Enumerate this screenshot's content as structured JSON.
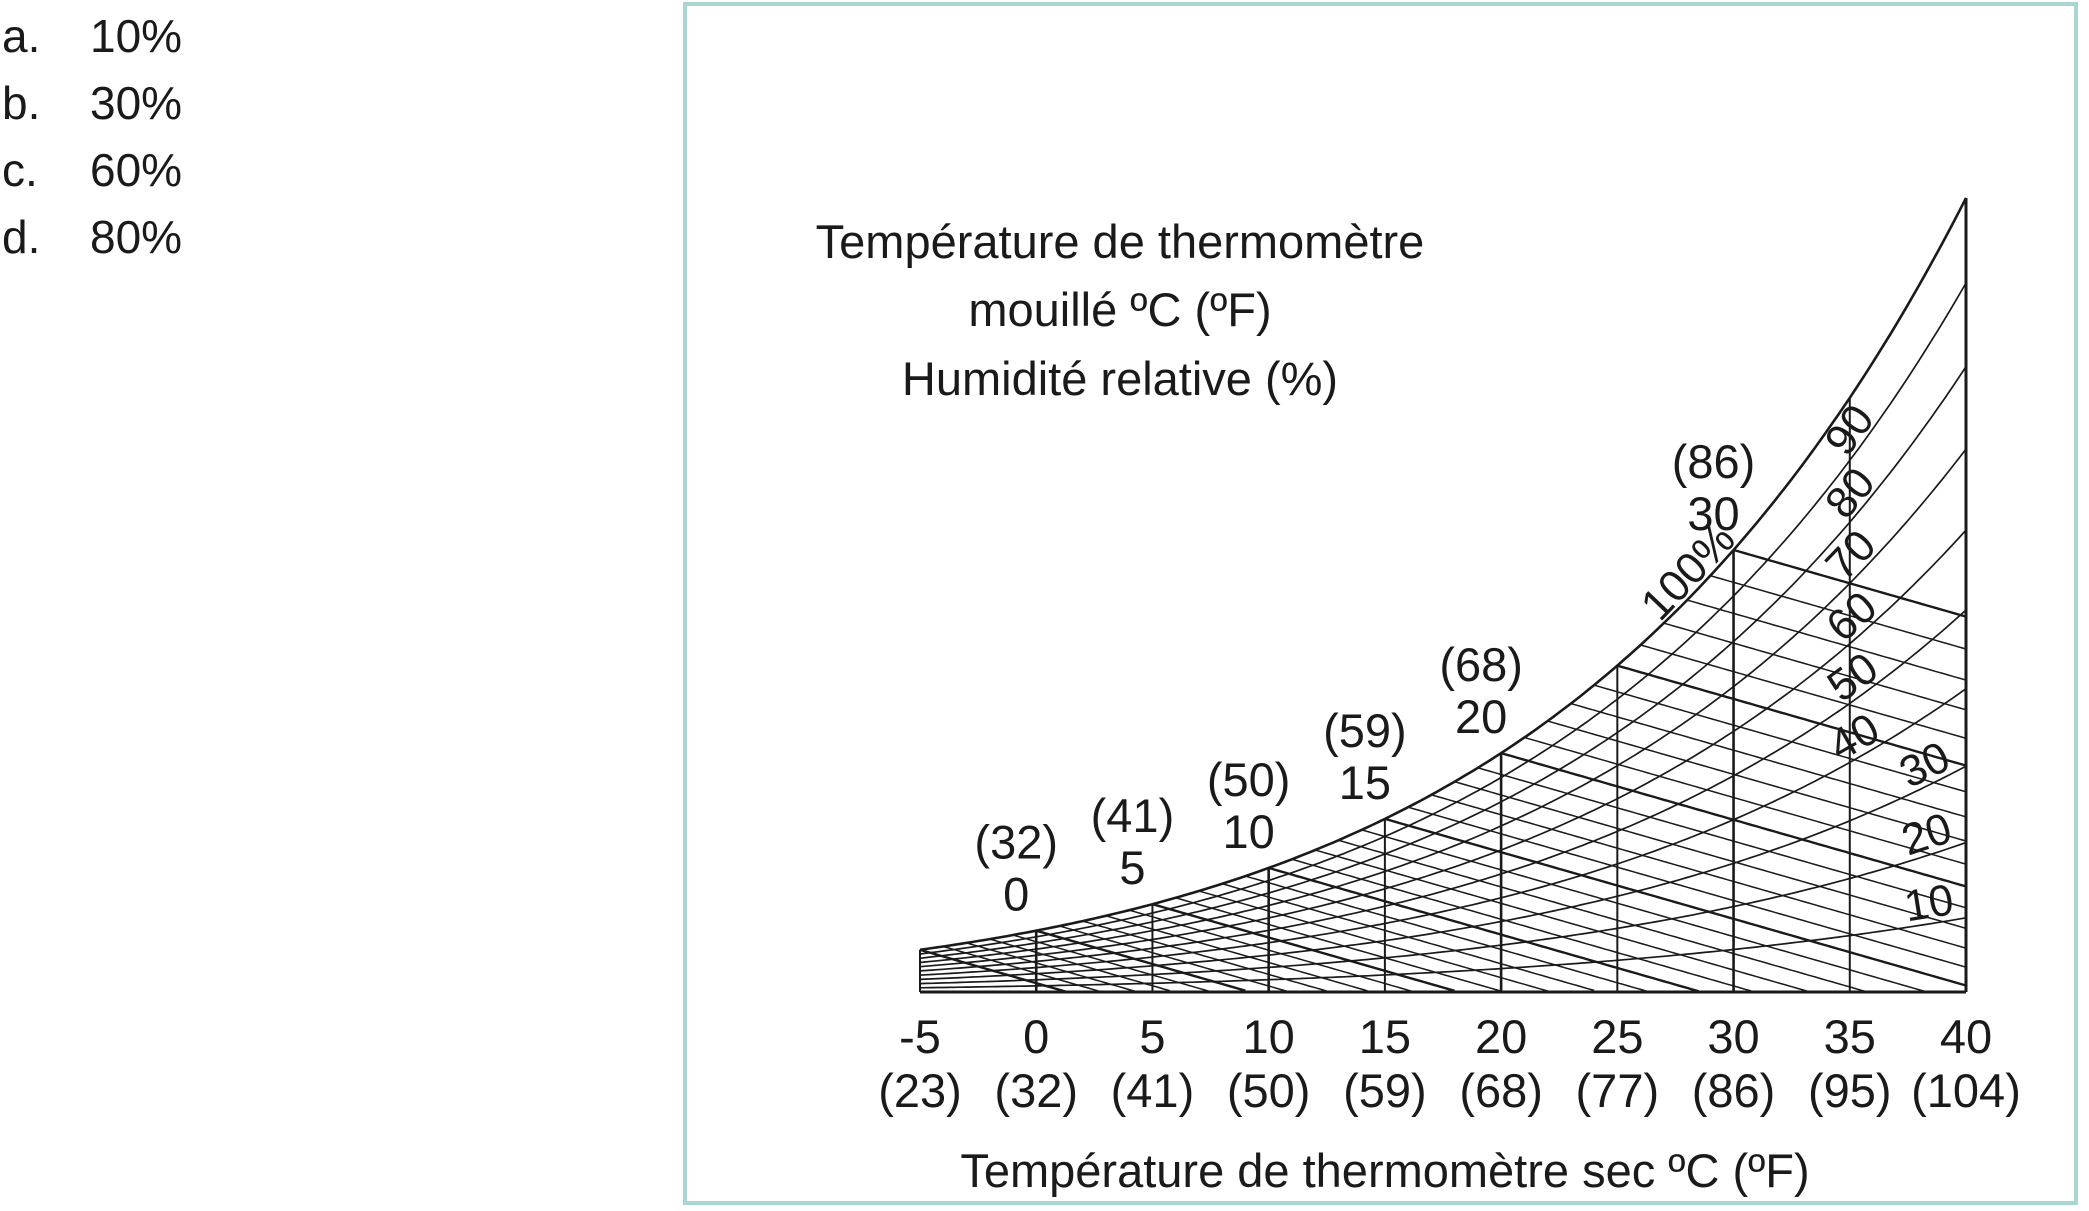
{
  "options": [
    {
      "letter": "a.",
      "text": "10%"
    },
    {
      "letter": "b.",
      "text": "30%"
    },
    {
      "letter": "c.",
      "text": "60%"
    },
    {
      "letter": "d.",
      "text": "80%"
    }
  ],
  "chart_data": {
    "type": "psychrometric",
    "title_lines": [
      "Température de thermomètre",
      "mouillé ºC (ºF)",
      "Humidité relative (%)"
    ],
    "xlabel": "Température de thermomètre sec ºC (ºF)",
    "xlim": [
      -5,
      40
    ],
    "x_ticks": [
      {
        "c": -5,
        "label": "-5",
        "f_label": "(23)"
      },
      {
        "c": 0,
        "label": "0",
        "f_label": "(32)"
      },
      {
        "c": 5,
        "label": "5",
        "f_label": "(41)"
      },
      {
        "c": 10,
        "label": "10",
        "f_label": "(50)"
      },
      {
        "c": 15,
        "label": "15",
        "f_label": "(59)"
      },
      {
        "c": 20,
        "label": "20",
        "f_label": "(68)"
      },
      {
        "c": 25,
        "label": "25",
        "f_label": "(77)"
      },
      {
        "c": 30,
        "label": "30",
        "f_label": "(86)"
      },
      {
        "c": 35,
        "label": "35",
        "f_label": "(95)"
      },
      {
        "c": 40,
        "label": "40",
        "f_label": "(104)"
      }
    ],
    "wet_bulb_labels": [
      {
        "c": 0,
        "label": "0",
        "f_label": "(32)"
      },
      {
        "c": 5,
        "label": "5",
        "f_label": "(41)"
      },
      {
        "c": 10,
        "label": "10",
        "f_label": "(50)"
      },
      {
        "c": 15,
        "label": "15",
        "f_label": "(59)"
      },
      {
        "c": 20,
        "label": "20",
        "f_label": "(68)"
      },
      {
        "c": 30,
        "label": "30",
        "f_label": "(86)"
      }
    ],
    "rh_curves": [
      {
        "rh": 100,
        "label": "100%"
      },
      {
        "rh": 90,
        "label": "90"
      },
      {
        "rh": 80,
        "label": "80"
      },
      {
        "rh": 70,
        "label": "70"
      },
      {
        "rh": 60,
        "label": "60"
      },
      {
        "rh": 50,
        "label": "50"
      },
      {
        "rh": 40,
        "label": "40"
      },
      {
        "rh": 30,
        "label": "30"
      },
      {
        "rh": 20,
        "label": "20"
      },
      {
        "rh": 10,
        "label": "10"
      }
    ],
    "wet_bulb_lines_c": [
      -5,
      -4,
      -3,
      -2,
      -1,
      0,
      1,
      2,
      3,
      4,
      5,
      6,
      7,
      8,
      9,
      10,
      11,
      12,
      13,
      14,
      15,
      16,
      17,
      18,
      19,
      20,
      21,
      22,
      23,
      24,
      25,
      26,
      27,
      28,
      29,
      30
    ]
  }
}
